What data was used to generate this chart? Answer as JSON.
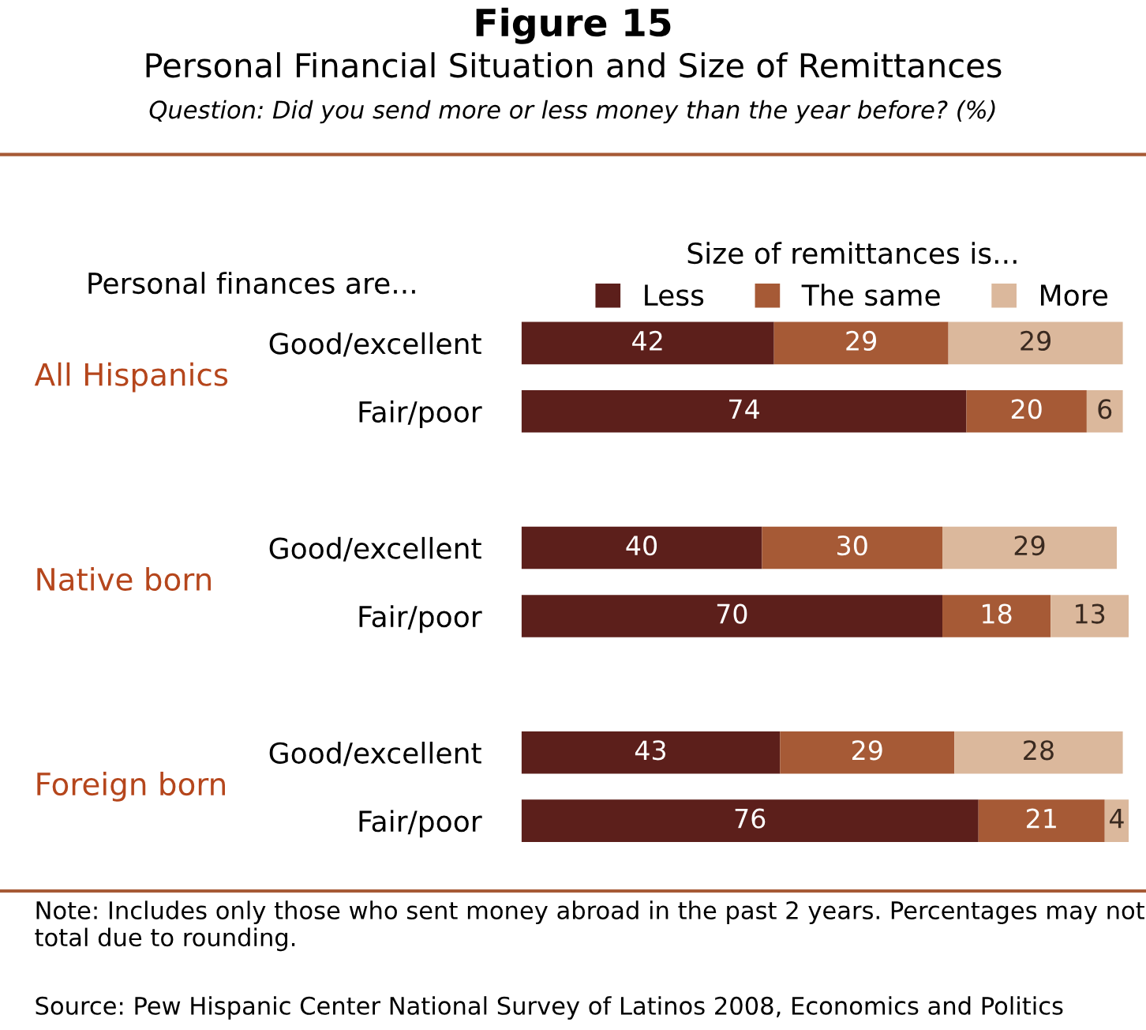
{
  "chart_data": {
    "type": "bar",
    "orientation": "horizontal",
    "stacked": true,
    "data_labels": true,
    "legend": "top",
    "grid": false,
    "title": "Figure 15",
    "subtitle": "Personal Financial Situation and Size of Remittances",
    "legend_title": "Size of remittances is...",
    "categories": [
      "Good/excellent",
      "Fair/poor",
      null,
      "Good/excellent",
      "Fair/poor",
      null,
      "Good/excellent",
      "Fair/poor"
    ],
    "series": [
      {
        "name": "Less",
        "color": "#5c1f1b",
        "values": [
          42,
          74,
          null,
          40,
          70,
          null,
          43,
          76
        ]
      },
      {
        "name": "The same",
        "color": "#a65a36",
        "values": [
          29,
          20,
          null,
          30,
          18,
          null,
          29,
          21
        ]
      },
      {
        "name": "More",
        "color": "#dbb89c",
        "values": [
          29,
          6,
          null,
          29,
          13,
          null,
          28,
          4
        ]
      }
    ],
    "annotations": [
      "Question: Did you send more or less money than the year before? (%)",
      "Personal finances are...",
      "All Hispanics",
      "Native born",
      "Foreign born",
      "Note: Includes only those who sent money abroad in the past 2 years. Percentages may not total due to rounding.",
      "Source: Pew Hispanic Center National Survey of Latinos 2008, Economics and Politics"
    ]
  }
}
